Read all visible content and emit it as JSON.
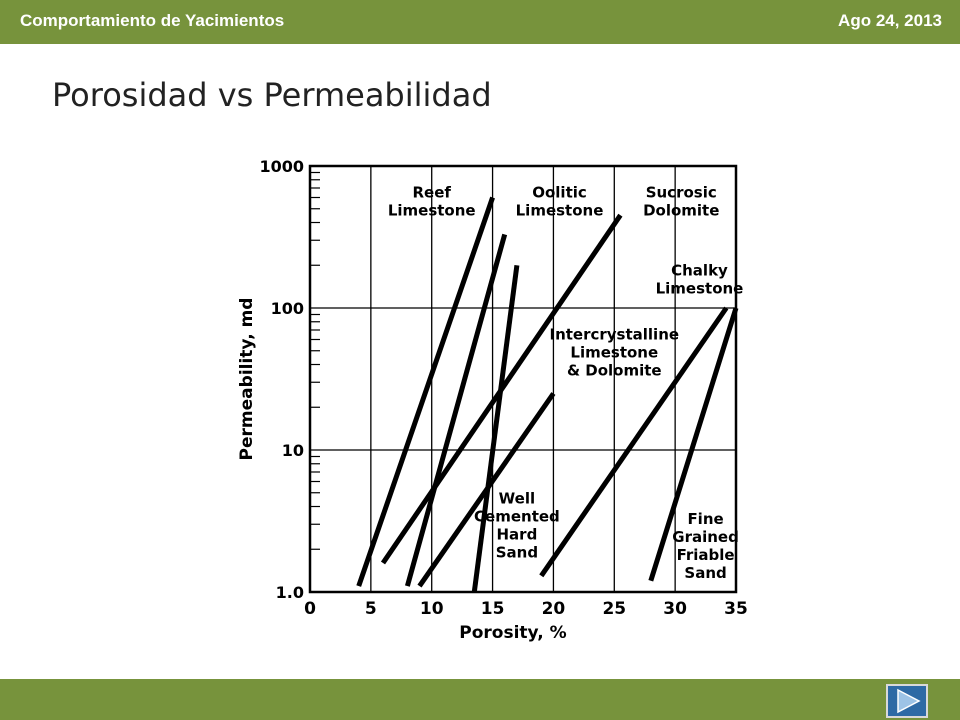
{
  "header": {
    "course": "Comportamiento de Yacimientos",
    "date": "Ago 24, 2013"
  },
  "slide": {
    "title": "Porosidad vs Permeabilidad"
  },
  "footer": {
    "next_icon": "play-right-icon"
  },
  "chart_data": {
    "type": "line",
    "xlabel": "Porosity, %",
    "ylabel": "Permeability, md",
    "xlim": [
      0,
      35
    ],
    "ylim": [
      1.0,
      1000
    ],
    "y_scale": "log",
    "x_ticks": [
      "0",
      "5",
      "10",
      "15",
      "20",
      "25",
      "30",
      "35"
    ],
    "y_ticks": [
      "1.0",
      "10",
      "100",
      "1000"
    ],
    "grid": true,
    "series": [
      {
        "points": [
          [
            4,
            1.1
          ],
          [
            15,
            600
          ]
        ]
      },
      {
        "points": [
          [
            8,
            1.1
          ],
          [
            16,
            330
          ]
        ]
      },
      {
        "points": [
          [
            13.5,
            1.0
          ],
          [
            17,
            200
          ]
        ]
      },
      {
        "points": [
          [
            6,
            1.6
          ],
          [
            25.5,
            450
          ]
        ]
      },
      {
        "points": [
          [
            9,
            1.1
          ],
          [
            20,
            25
          ]
        ]
      },
      {
        "points": [
          [
            19,
            1.3
          ],
          [
            34.2,
            100
          ]
        ]
      },
      {
        "points": [
          [
            28,
            1.2
          ],
          [
            35,
            100
          ]
        ]
      }
    ],
    "annotations": [
      {
        "lines": [
          "Reef",
          "Limestone"
        ],
        "x": 10,
        "y": 600
      },
      {
        "lines": [
          "Oolitic",
          "Limestone"
        ],
        "x": 20.5,
        "y": 600
      },
      {
        "lines": [
          "Sucrosic",
          "Dolomite"
        ],
        "x": 30.5,
        "y": 600
      },
      {
        "lines": [
          "Chalky",
          "Limestone"
        ],
        "x": 32,
        "y": 170
      },
      {
        "lines": [
          "Intercrystalline",
          "Limestone",
          "& Dolomite"
        ],
        "x": 25,
        "y": 60
      },
      {
        "lines": [
          "Well",
          "Cemented",
          "Hard",
          "Sand"
        ],
        "x": 17,
        "y": 4.2
      },
      {
        "lines": [
          "Fine",
          "Grained",
          "Friable",
          "Sand"
        ],
        "x": 32.5,
        "y": 3
      }
    ]
  }
}
